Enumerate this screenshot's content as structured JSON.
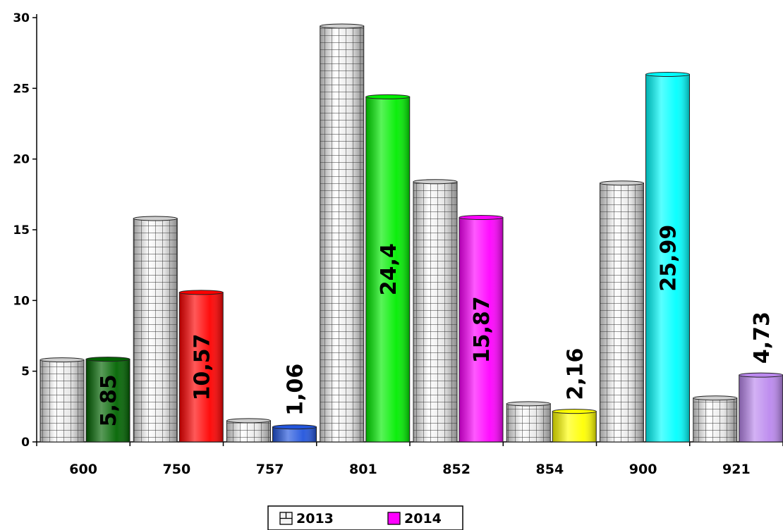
{
  "chart_data": {
    "type": "bar",
    "categories": [
      "600",
      "750",
      "757",
      "801",
      "852",
      "854",
      "900",
      "921"
    ],
    "series": [
      {
        "name": "2013",
        "values": [
          5.8,
          15.8,
          1.5,
          29.4,
          18.4,
          2.7,
          18.3,
          3.1
        ],
        "pattern": "grid",
        "color": "#e8e8e8"
      },
      {
        "name": "2014",
        "values": [
          5.85,
          10.57,
          1.06,
          24.4,
          15.87,
          2.16,
          25.99,
          4.73
        ],
        "color": "#ff00ff",
        "labels": [
          "5,85",
          "10,57",
          "1,06",
          "24,4",
          "15,87",
          "2,16",
          "25,99",
          "4,73"
        ]
      }
    ],
    "bar_colors_2014": [
      "#006400",
      "#ff0000",
      "#2255dd",
      "#00ee00",
      "#ff00ff",
      "#ffff00",
      "#00ffff",
      "#bb88ee"
    ],
    "yticks": [
      "0",
      "5",
      "10",
      "15",
      "20",
      "25",
      "30"
    ],
    "ylim": [
      0,
      30
    ],
    "legend_position": "bottom-center",
    "grid": false
  }
}
